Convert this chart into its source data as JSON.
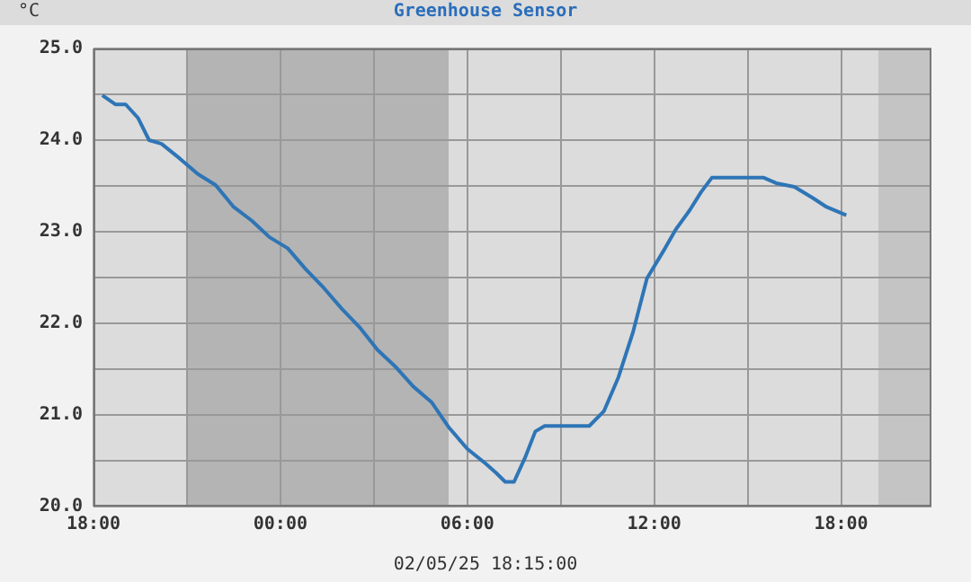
{
  "chart_data": {
    "type": "line",
    "title": "Greenhouse Sensor",
    "ylabel": "°C",
    "xlabel": "02/05/25 18:15:00",
    "xlim": [
      "--02-04T18:00",
      "--02-05T20:54"
    ],
    "xticks": [
      {
        "value": "--02-04T18:00",
        "label": "18:00"
      },
      {
        "value": "--02-04T21:00",
        "label": null
      },
      {
        "value": "--02-05T00:00",
        "label": "00:00"
      },
      {
        "value": "--02-05T03:00",
        "label": null
      },
      {
        "value": "--02-05T06:00",
        "label": "06:00"
      },
      {
        "value": "--02-05T09:00",
        "label": null
      },
      {
        "value": "--02-05T12:00",
        "label": "12:00"
      },
      {
        "value": "--02-05T15:00",
        "label": null
      },
      {
        "value": "--02-05T18:00",
        "label": "18:00"
      }
    ],
    "ylim": [
      20,
      25
    ],
    "yticks": [
      {
        "value": 20,
        "label": "20.0"
      },
      {
        "value": 20.5,
        "label": null
      },
      {
        "value": 21,
        "label": "21.0"
      },
      {
        "value": 21.5,
        "label": null
      },
      {
        "value": 22,
        "label": "22.0"
      },
      {
        "value": 22.5,
        "label": null
      },
      {
        "value": 23,
        "label": "23.0"
      },
      {
        "value": 23.5,
        "label": null
      },
      {
        "value": 24,
        "label": "24.0"
      },
      {
        "value": 24.5,
        "label": null
      },
      {
        "value": 25,
        "label": "25.0"
      }
    ],
    "grid": true,
    "legend": false,
    "bands": [
      {
        "axis": "x",
        "from": "--02-04T21:00",
        "to": "--02-05T05:24",
        "color": "#b4b4b4"
      },
      {
        "axis": "x",
        "from": "--02-05T19:12",
        "to": "--02-05T20:54",
        "color": "#c4c4c4"
      }
    ],
    "series": [
      {
        "color": "#2e75b6",
        "x": [
          "--02-04T18:17",
          "--02-04T18:42",
          "--02-04T19:02",
          "--02-04T19:26",
          "--02-04T19:47",
          "--02-04T20:11",
          "--02-04T20:46",
          "--02-04T21:21",
          "--02-04T21:55",
          "--02-04T22:30",
          "--02-04T23:05",
          "--02-04T23:39",
          "--02-05T00:14",
          "--02-05T00:49",
          "--02-05T01:23",
          "--02-05T01:58",
          "--02-05T02:32",
          "--02-05T03:07",
          "--02-05T03:41",
          "--02-05T04:16",
          "--02-05T04:51",
          "--02-05T05:25",
          "--02-05T06:00",
          "--02-05T06:35",
          "--02-05T06:55",
          "--02-05T07:13",
          "--02-05T07:30",
          "--02-05T07:51",
          "--02-05T08:11",
          "--02-05T08:29",
          "--02-05T09:10",
          "--02-05T09:55",
          "--02-05T10:23",
          "--02-05T10:51",
          "--02-05T11:19",
          "--02-05T11:46",
          "--02-05T12:21",
          "--02-05T12:41",
          "--02-05T13:09",
          "--02-05T13:30",
          "--02-05T13:51",
          "--02-05T14:39",
          "--02-05T15:31",
          "--02-05T15:55",
          "--02-05T16:30",
          "--02-05T17:05",
          "--02-05T17:32",
          "--02-05T18:10"
        ],
        "values": [
          24.49,
          24.39,
          24.39,
          24.24,
          24.0,
          23.96,
          23.8,
          23.63,
          23.51,
          23.27,
          23.12,
          22.94,
          22.82,
          22.59,
          22.39,
          22.16,
          21.96,
          21.71,
          21.53,
          21.31,
          21.14,
          20.86,
          20.63,
          20.47,
          20.37,
          20.27,
          20.27,
          20.53,
          20.82,
          20.88,
          20.88,
          20.88,
          21.04,
          21.41,
          21.9,
          22.49,
          22.82,
          23.02,
          23.24,
          23.43,
          23.59,
          23.59,
          23.59,
          23.53,
          23.49,
          23.37,
          23.27,
          23.18
        ]
      }
    ]
  }
}
